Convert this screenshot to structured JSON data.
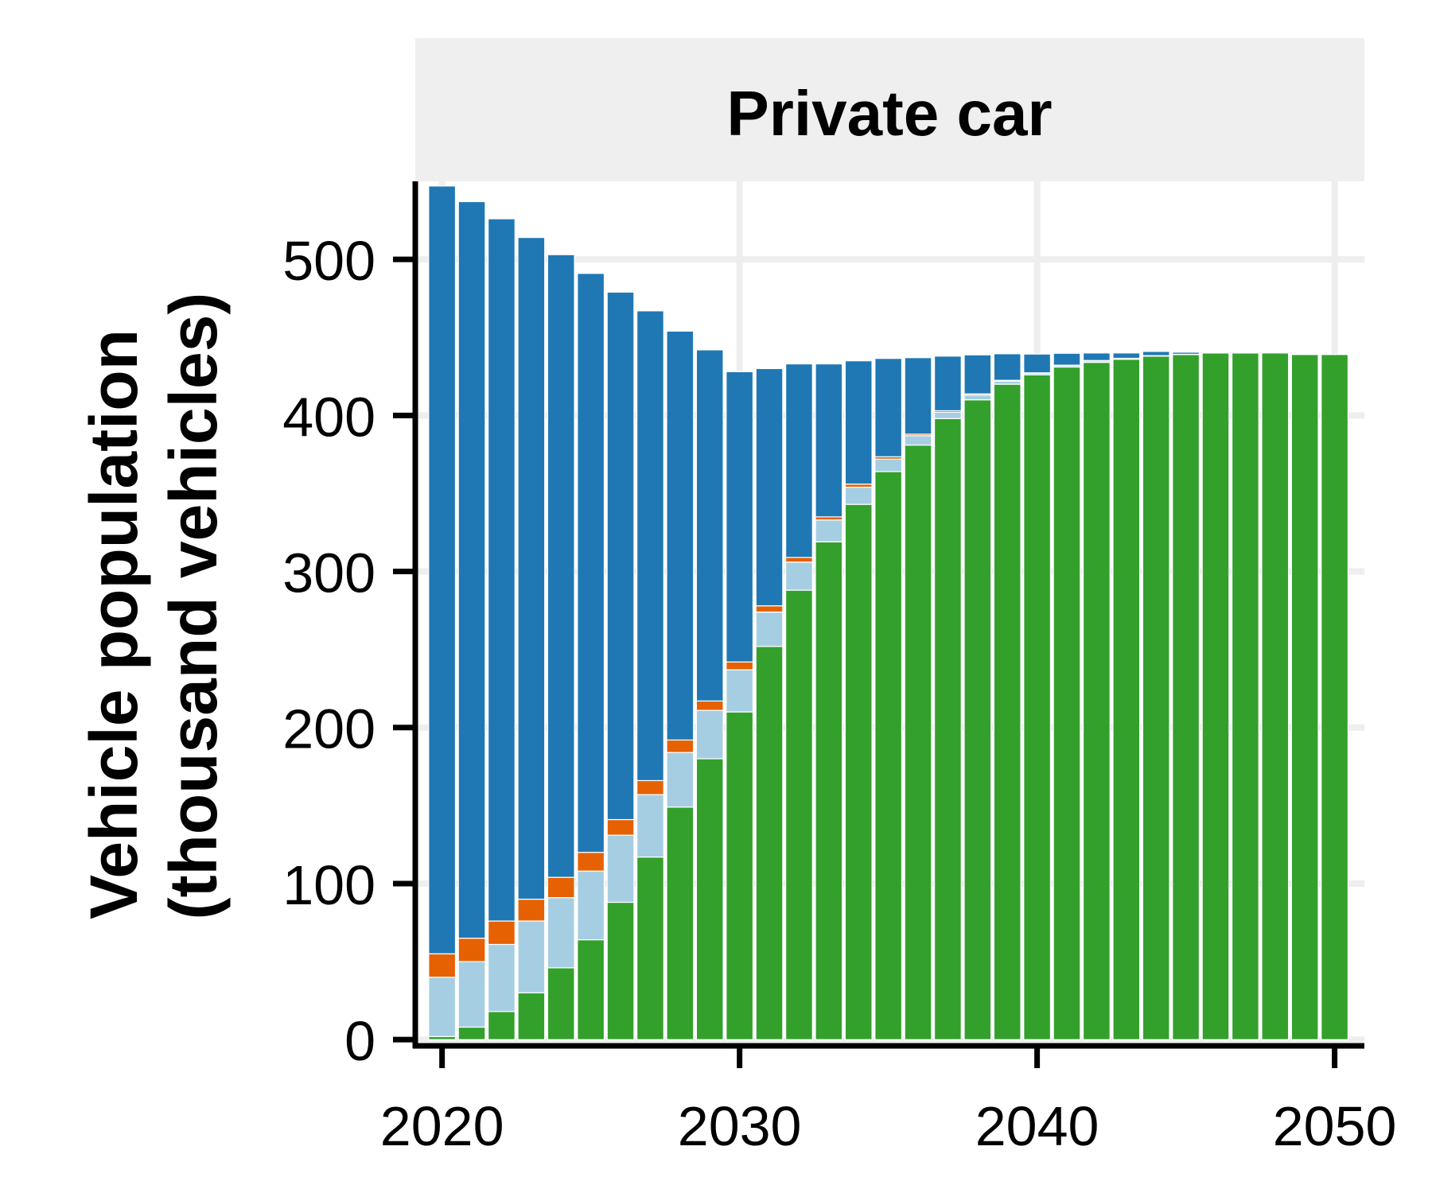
{
  "chart_data": {
    "type": "bar",
    "stacked": true,
    "panel_title": "Private car",
    "ylabel_line1": "Vehicle population",
    "ylabel_line2": "(thousand vehicles)",
    "xlabel": "",
    "xlim": [
      2019.1,
      2051
    ],
    "ylim": [
      -4,
      550
    ],
    "x_ticks": [
      2020,
      2030,
      2040,
      2050
    ],
    "y_ticks": [
      0,
      100,
      200,
      300,
      400,
      500
    ],
    "grid": true,
    "legend": "none",
    "x": [
      2020,
      2021,
      2022,
      2023,
      2024,
      2025,
      2026,
      2027,
      2028,
      2029,
      2030,
      2031,
      2032,
      2033,
      2034,
      2035,
      2036,
      2037,
      2038,
      2039,
      2040,
      2041,
      2042,
      2043,
      2044,
      2045,
      2046,
      2047,
      2048,
      2049,
      2050
    ],
    "series": [
      {
        "color": "#33a02c",
        "values": [
          2,
          8,
          18,
          30,
          46,
          64,
          88,
          117,
          149,
          180,
          210,
          252,
          288,
          319,
          343,
          364,
          381,
          398,
          410,
          420,
          426,
          431,
          434,
          436,
          438,
          439,
          440,
          440,
          440,
          439,
          439
        ]
      },
      {
        "color": "#a6cee3",
        "values": [
          38,
          42,
          43,
          46,
          45,
          44,
          43,
          40,
          35,
          31,
          27,
          22,
          18,
          14,
          11,
          8,
          6,
          4,
          3,
          2,
          1,
          1,
          1,
          0.5,
          0.3,
          0.2,
          0,
          0,
          0,
          0,
          0
        ]
      },
      {
        "color": "#e66101",
        "values": [
          15,
          15,
          15,
          14,
          13,
          12,
          10,
          9,
          8,
          6,
          5,
          4,
          3,
          2,
          2,
          1.5,
          1,
          1,
          0.8,
          0.5,
          0.3,
          0.2,
          0.2,
          0.1,
          0,
          0,
          0,
          0,
          0,
          0,
          0
        ]
      },
      {
        "color": "#1f78b4",
        "values": [
          492,
          472,
          450,
          424,
          399,
          371,
          338,
          301,
          262,
          225,
          186,
          152,
          124,
          98,
          79,
          63,
          49,
          35,
          25,
          17,
          12,
          7.6,
          4.8,
          3.4,
          2.7,
          1.3,
          0.5,
          0.4,
          0,
          0,
          0
        ]
      }
    ]
  }
}
